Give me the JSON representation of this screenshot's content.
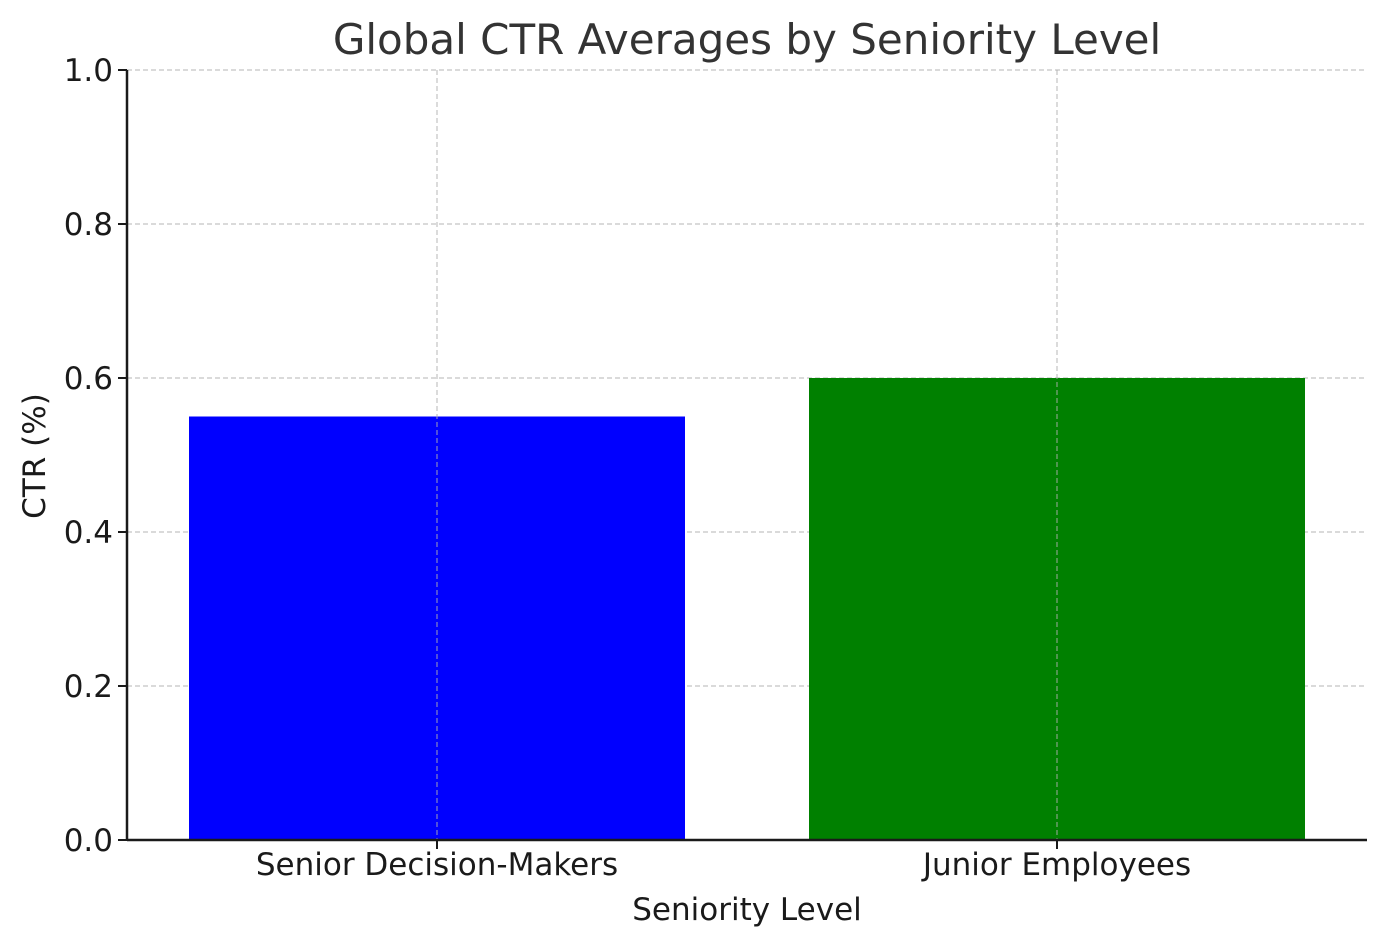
{
  "chart_data": {
    "type": "bar",
    "title": "Global CTR Averages by Seniority Level",
    "xlabel": "Seniority Level",
    "ylabel": "CTR (%)",
    "categories": [
      "Senior Decision-Makers",
      "Junior Employees"
    ],
    "values": [
      0.55,
      0.6
    ],
    "colors": [
      "#0000ff",
      "#008000"
    ],
    "ylim": [
      0,
      1.0
    ],
    "yticks": [
      "0.0",
      "0.2",
      "0.4",
      "0.6",
      "0.8",
      "1.0"
    ],
    "grid": true,
    "legend": "none"
  }
}
